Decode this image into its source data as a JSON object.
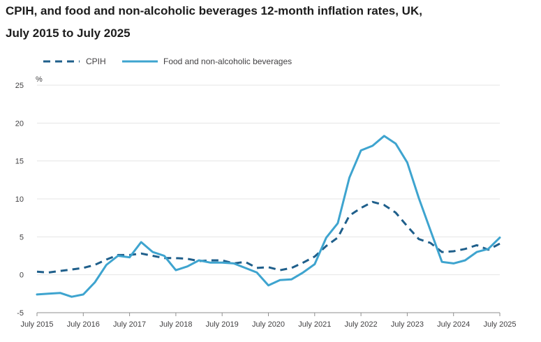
{
  "title_line1": "CPIH, and food and non-alcoholic beverages 12-month inflation rates, UK,",
  "title_line2": "July 2015 to July 2025",
  "chart_data": {
    "type": "line",
    "title": "CPIH, and food and non-alcoholic beverages 12-month inflation rates, UK, July 2015 to July 2025",
    "ylabel": "%",
    "ylim": [
      -5,
      25
    ],
    "yticks": [
      -5,
      0,
      5,
      10,
      15,
      20,
      25
    ],
    "xlim": [
      2015.5,
      2025.5
    ],
    "xticks": [
      "July 2015",
      "July 2016",
      "July 2017",
      "July 2018",
      "July 2019",
      "July 2020",
      "July 2021",
      "July 2022",
      "July 2023",
      "July 2024",
      "July 2025"
    ],
    "grid": "horizontal",
    "legend_position": "top-left",
    "series": [
      {
        "name": "CPIH",
        "style": "dashed",
        "color": "#1f5f8b",
        "x": [
          2015.5,
          2015.75,
          2016.0,
          2016.25,
          2016.5,
          2016.75,
          2017.0,
          2017.25,
          2017.5,
          2017.75,
          2018.0,
          2018.25,
          2018.5,
          2018.75,
          2019.0,
          2019.25,
          2019.5,
          2019.75,
          2020.0,
          2020.25,
          2020.5,
          2020.75,
          2021.0,
          2021.25,
          2021.5,
          2021.75,
          2022.0,
          2022.25,
          2022.5,
          2022.75,
          2023.0,
          2023.25,
          2023.5,
          2023.75,
          2024.0,
          2024.25,
          2024.5,
          2024.75,
          2025.0,
          2025.25,
          2025.5
        ],
        "values": [
          0.4,
          0.3,
          0.5,
          0.7,
          0.9,
          1.3,
          2.0,
          2.6,
          2.6,
          2.8,
          2.5,
          2.2,
          2.2,
          2.1,
          1.8,
          1.9,
          1.9,
          1.5,
          1.7,
          0.9,
          1.0,
          0.6,
          0.9,
          1.6,
          2.4,
          3.8,
          4.9,
          7.8,
          8.8,
          9.6,
          9.2,
          8.2,
          6.4,
          4.7,
          4.2,
          3.0,
          3.1,
          3.4,
          3.9,
          3.3,
          4.1
        ]
      },
      {
        "name": "Food and non-alcoholic beverages",
        "style": "solid",
        "color": "#3ea4cf",
        "x": [
          2015.5,
          2015.75,
          2016.0,
          2016.25,
          2016.5,
          2016.75,
          2017.0,
          2017.25,
          2017.5,
          2017.75,
          2018.0,
          2018.25,
          2018.5,
          2018.75,
          2019.0,
          2019.25,
          2019.5,
          2019.75,
          2020.0,
          2020.25,
          2020.5,
          2020.75,
          2021.0,
          2021.25,
          2021.5,
          2021.75,
          2022.0,
          2022.25,
          2022.5,
          2022.75,
          2023.0,
          2023.25,
          2023.5,
          2023.75,
          2024.0,
          2024.25,
          2024.5,
          2024.75,
          2025.0,
          2025.25,
          2025.5
        ],
        "values": [
          -2.6,
          -2.5,
          -2.4,
          -2.9,
          -2.6,
          -1.0,
          1.3,
          2.5,
          2.3,
          4.3,
          3.0,
          2.5,
          0.6,
          1.1,
          1.9,
          1.6,
          1.6,
          1.5,
          0.9,
          0.3,
          -1.4,
          -0.7,
          -0.6,
          0.3,
          1.4,
          4.9,
          6.8,
          12.8,
          16.4,
          17.0,
          18.3,
          17.3,
          14.8,
          10.1,
          5.9,
          1.7,
          1.5,
          1.9,
          3.0,
          3.4,
          4.9
        ]
      }
    ]
  }
}
